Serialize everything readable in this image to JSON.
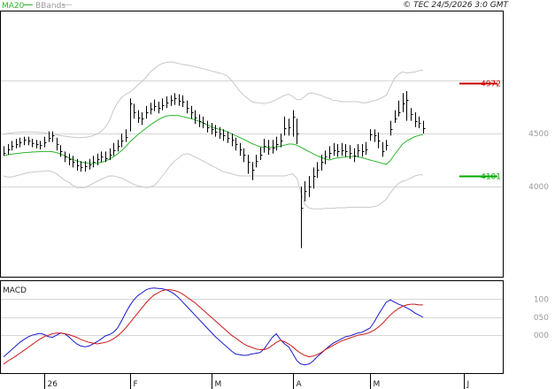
{
  "header": {
    "ma_label": "MA20",
    "bb_label": "BBands",
    "copyright": "© TEC 24/5/2026 3:0 GMT"
  },
  "colors": {
    "ma": "#2cb52c",
    "bands": "#c8c8c8",
    "price": "#000000",
    "resistance": "#cc0000",
    "support": "#00aa00",
    "macd": "#1a1acc",
    "signal": "#cc1a1a",
    "grid": "#d6d6d6"
  },
  "chart_data": [
    {
      "type": "ohlc",
      "price_levels": [
        {
          "name": "resistance",
          "value": 4972,
          "label": "4972",
          "color": "#cc0000"
        },
        {
          "name": "support",
          "value": 4101,
          "label": "4101",
          "color": "#00aa00"
        }
      ],
      "ylim": [
        3150,
        5650
      ],
      "gridlines": [
        4000,
        4500,
        5000
      ],
      "y_ticks": [
        {
          "value": 4500,
          "label": "4500"
        },
        {
          "value": 4000,
          "label": "4000"
        }
      ],
      "x_labels": [
        {
          "index": 10,
          "label": "26"
        },
        {
          "index": 31,
          "label": "F"
        },
        {
          "index": 51,
          "label": "M"
        },
        {
          "index": 71,
          "label": "A"
        },
        {
          "index": 90,
          "label": "M"
        },
        {
          "index": 113,
          "label": "J"
        }
      ],
      "x_count": 114,
      "close": [
        4320,
        4350,
        4380,
        4400,
        4420,
        4440,
        4430,
        4410,
        4400,
        4390,
        4420,
        4460,
        4480,
        4400,
        4330,
        4280,
        4260,
        4230,
        4200,
        4180,
        4190,
        4210,
        4230,
        4260,
        4280,
        4270,
        4300,
        4340,
        4380,
        4430,
        4470,
        4780,
        4700,
        4650,
        4640,
        4700,
        4730,
        4760,
        4740,
        4770,
        4790,
        4820,
        4830,
        4810,
        4800,
        4740,
        4700,
        4650,
        4620,
        4600,
        4560,
        4540,
        4520,
        4500,
        4480,
        4460,
        4440,
        4400,
        4350,
        4300,
        4230,
        4160,
        4240,
        4300,
        4380,
        4360,
        4370,
        4400,
        4430,
        4550,
        4560,
        4660,
        4500,
        3800,
        3960,
        4000,
        4100,
        4160,
        4230,
        4280,
        4320,
        4340,
        4330,
        4340,
        4330,
        4320,
        4290,
        4340,
        4330,
        4350,
        4490,
        4480,
        4430,
        4330,
        4390,
        4540,
        4640,
        4700,
        4780,
        4820,
        4680,
        4620,
        4600,
        4550
      ],
      "high": [
        4380,
        4400,
        4430,
        4450,
        4460,
        4470,
        4470,
        4450,
        4440,
        4430,
        4470,
        4520,
        4520,
        4460,
        4390,
        4330,
        4310,
        4290,
        4260,
        4240,
        4240,
        4260,
        4290,
        4310,
        4330,
        4330,
        4360,
        4410,
        4440,
        4500,
        4540,
        4830,
        4780,
        4720,
        4700,
        4760,
        4790,
        4820,
        4800,
        4830,
        4850,
        4860,
        4880,
        4870,
        4860,
        4810,
        4760,
        4720,
        4680,
        4660,
        4620,
        4600,
        4580,
        4560,
        4540,
        4520,
        4500,
        4460,
        4410,
        4360,
        4300,
        4230,
        4300,
        4370,
        4450,
        4440,
        4440,
        4470,
        4500,
        4660,
        4640,
        4720,
        4640,
        4000,
        4050,
        4100,
        4180,
        4230,
        4300,
        4340,
        4380,
        4410,
        4400,
        4410,
        4400,
        4390,
        4360,
        4400,
        4400,
        4420,
        4540,
        4540,
        4510,
        4420,
        4440,
        4620,
        4720,
        4810,
        4880,
        4900,
        4740,
        4700,
        4660,
        4620
      ],
      "low": [
        4290,
        4300,
        4340,
        4360,
        4370,
        4390,
        4390,
        4370,
        4360,
        4350,
        4370,
        4420,
        4420,
        4340,
        4280,
        4230,
        4200,
        4180,
        4150,
        4140,
        4140,
        4160,
        4180,
        4200,
        4230,
        4230,
        4250,
        4290,
        4330,
        4370,
        4420,
        4520,
        4640,
        4600,
        4580,
        4640,
        4680,
        4710,
        4690,
        4720,
        4740,
        4760,
        4770,
        4760,
        4750,
        4690,
        4640,
        4590,
        4560,
        4550,
        4510,
        4490,
        4470,
        4450,
        4430,
        4410,
        4380,
        4340,
        4290,
        4230,
        4120,
        4060,
        4180,
        4250,
        4320,
        4300,
        4310,
        4340,
        4370,
        4480,
        4480,
        4470,
        4400,
        3420,
        3860,
        3900,
        3980,
        4080,
        4150,
        4210,
        4260,
        4290,
        4280,
        4290,
        4280,
        4260,
        4230,
        4280,
        4280,
        4300,
        4430,
        4420,
        4360,
        4280,
        4340,
        4480,
        4600,
        4660,
        4700,
        4620,
        4620,
        4560,
        4550,
        4500
      ],
      "ma20": [
        4290,
        4300,
        4305,
        4310,
        4315,
        4320,
        4322,
        4325,
        4327,
        4329,
        4330,
        4330,
        4328,
        4320,
        4305,
        4290,
        4270,
        4255,
        4240,
        4232,
        4225,
        4220,
        4218,
        4220,
        4228,
        4240,
        4258,
        4280,
        4308,
        4340,
        4375,
        4420,
        4455,
        4490,
        4520,
        4550,
        4580,
        4605,
        4630,
        4650,
        4665,
        4670,
        4670,
        4668,
        4660,
        4650,
        4640,
        4630,
        4615,
        4600,
        4580,
        4565,
        4550,
        4540,
        4530,
        4515,
        4498,
        4480,
        4462,
        4445,
        4425,
        4405,
        4390,
        4375,
        4370,
        4370,
        4372,
        4375,
        4380,
        4390,
        4400,
        4400,
        4390,
        4370,
        4350,
        4330,
        4310,
        4290,
        4275,
        4262,
        4250,
        4262,
        4270,
        4275,
        4278,
        4282,
        4285,
        4280,
        4272,
        4262,
        4250,
        4240,
        4230,
        4218,
        4210,
        4245,
        4300,
        4350,
        4400,
        4430,
        4450,
        4470,
        4482,
        4490
      ],
      "bb_upper": [
        4490,
        4500,
        4505,
        4510,
        4512,
        4515,
        4515,
        4515,
        4512,
        4510,
        4505,
        4500,
        4495,
        4488,
        4480,
        4475,
        4470,
        4465,
        4460,
        4460,
        4465,
        4470,
        4480,
        4495,
        4520,
        4560,
        4620,
        4720,
        4790,
        4840,
        4870,
        4890,
        4920,
        4960,
        4990,
        5030,
        5080,
        5110,
        5140,
        5160,
        5170,
        5175,
        5170,
        5160,
        5150,
        5145,
        5140,
        5130,
        5120,
        5110,
        5100,
        5090,
        5080,
        5070,
        5060,
        5040,
        5000,
        4950,
        4900,
        4860,
        4830,
        4800,
        4790,
        4790,
        4780,
        4790,
        4800,
        4820,
        4840,
        4860,
        4870,
        4850,
        4820,
        4820,
        4850,
        4880,
        4880,
        4870,
        4860,
        4840,
        4830,
        4810,
        4810,
        4800,
        4800,
        4800,
        4800,
        4800,
        4790,
        4790,
        4800,
        4810,
        4820,
        4840,
        4860,
        4940,
        5020,
        5060,
        5080,
        5070,
        5075,
        5080,
        5090,
        5100
      ],
      "bb_lower": [
        4100,
        4090,
        4090,
        4100,
        4110,
        4120,
        4130,
        4135,
        4140,
        4142,
        4145,
        4150,
        4140,
        4120,
        4090,
        4060,
        4040,
        4010,
        3990,
        3990,
        3990,
        4010,
        4030,
        4050,
        4070,
        4085,
        4100,
        4100,
        4090,
        4080,
        4060,
        4040,
        4020,
        4005,
        4000,
        3990,
        3995,
        4010,
        4050,
        4100,
        4150,
        4200,
        4240,
        4270,
        4300,
        4310,
        4300,
        4280,
        4260,
        4240,
        4220,
        4200,
        4180,
        4160,
        4140,
        4130,
        4120,
        4110,
        4100,
        4100,
        4100,
        4100,
        4100,
        4100,
        4100,
        4100,
        4100,
        4100,
        4100,
        4100,
        4110,
        4120,
        4080,
        3950,
        3830,
        3800,
        3790,
        3790,
        3790,
        3795,
        3795,
        3795,
        3800,
        3800,
        3800,
        3805,
        3805,
        3805,
        3805,
        3805,
        3805,
        3810,
        3820,
        3850,
        3880,
        3940,
        3990,
        4030,
        4050,
        4060,
        4080,
        4100,
        4110,
        4110
      ]
    },
    {
      "type": "line",
      "title": "MACD",
      "ylim": [
        -105,
        150
      ],
      "y_ticks": [
        {
          "value": 100,
          "label": "100"
        },
        {
          "value": 50,
          "label": "050"
        },
        {
          "value": 0,
          "label": "000"
        }
      ],
      "series": [
        {
          "name": "macd",
          "color": "#1a1acc",
          "values": [
            -60,
            -50,
            -40,
            -30,
            -20,
            -12,
            -5,
            0,
            3,
            5,
            2,
            -4,
            -6,
            0,
            6,
            4,
            -4,
            -15,
            -24,
            -30,
            -32,
            -30,
            -24,
            -18,
            -10,
            -2,
            2,
            8,
            20,
            40,
            62,
            82,
            98,
            110,
            118,
            126,
            130,
            131,
            130,
            129,
            126,
            121,
            114,
            104,
            92,
            80,
            68,
            56,
            44,
            32,
            20,
            8,
            -4,
            -14,
            -24,
            -34,
            -44,
            -52,
            -54,
            -56,
            -55,
            -52,
            -50,
            -48,
            -38,
            -22,
            -6,
            4,
            -12,
            -24,
            -32,
            -50,
            -70,
            -80,
            -82,
            -80,
            -72,
            -60,
            -50,
            -40,
            -30,
            -22,
            -16,
            -10,
            -4,
            -2,
            2,
            6,
            8,
            14,
            20,
            36,
            56,
            74,
            92,
            98,
            92,
            86,
            82,
            76,
            70,
            62,
            56,
            50
          ]
        },
        {
          "name": "signal",
          "color": "#cc1a1a",
          "values": [
            -80,
            -72,
            -65,
            -58,
            -50,
            -42,
            -34,
            -26,
            -18,
            -10,
            -4,
            0,
            4,
            6,
            6,
            4,
            2,
            -2,
            -6,
            -12,
            -16,
            -20,
            -22,
            -24,
            -22,
            -20,
            -16,
            -10,
            -2,
            8,
            20,
            34,
            48,
            62,
            76,
            90,
            102,
            112,
            118,
            124,
            126,
            126,
            124,
            120,
            114,
            106,
            98,
            90,
            80,
            70,
            60,
            50,
            40,
            30,
            20,
            10,
            0,
            -8,
            -16,
            -24,
            -30,
            -34,
            -38,
            -40,
            -40,
            -36,
            -28,
            -20,
            -14,
            -18,
            -24,
            -32,
            -42,
            -50,
            -56,
            -60,
            -58,
            -54,
            -48,
            -40,
            -34,
            -28,
            -22,
            -16,
            -12,
            -8,
            -4,
            0,
            2,
            4,
            8,
            14,
            22,
            32,
            44,
            56,
            66,
            74,
            80,
            84,
            86,
            86,
            84,
            84
          ]
        }
      ],
      "x_count": 114
    }
  ]
}
